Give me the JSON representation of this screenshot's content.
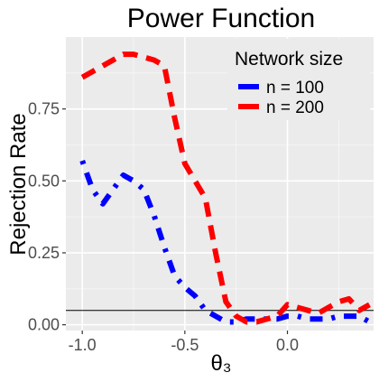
{
  "chart_data": {
    "type": "line",
    "title": "Power Function",
    "xlabel": "θ₃",
    "ylabel": "Rejection Rate",
    "xlim": [
      -1.08,
      0.42
    ],
    "ylim": [
      -0.02,
      1.0
    ],
    "x_ticks": [
      -1.0,
      -0.5,
      0.0
    ],
    "x_tick_labels": [
      "-1.0",
      "-0.5",
      "0.0"
    ],
    "y_ticks": [
      0.0,
      0.25,
      0.5,
      0.75
    ],
    "y_tick_labels": [
      "0.00",
      "0.25",
      "0.50",
      "0.75"
    ],
    "grid": true,
    "legend": {
      "title": "Network size",
      "placement": "top-right"
    },
    "reference_line": {
      "y": 0.05,
      "color": "#000000"
    },
    "series": [
      {
        "name": "n = 100",
        "color": "#0000FF",
        "x": [
          -1.0,
          -0.95,
          -0.9,
          -0.85,
          -0.8,
          -0.75,
          -0.7,
          -0.65,
          -0.6,
          -0.55,
          -0.5,
          -0.45,
          -0.4,
          -0.35,
          -0.3,
          -0.25,
          -0.2,
          -0.15,
          -0.1,
          -0.05,
          0.0,
          0.05,
          0.1,
          0.15,
          0.2,
          0.25,
          0.3,
          0.35,
          0.4
        ],
        "values": [
          0.57,
          0.47,
          0.42,
          0.47,
          0.52,
          0.5,
          0.47,
          0.38,
          0.27,
          0.17,
          0.13,
          0.1,
          0.05,
          0.03,
          0.01,
          0.01,
          0.02,
          0.02,
          0.02,
          0.02,
          0.03,
          0.03,
          0.02,
          0.02,
          0.02,
          0.03,
          0.03,
          0.03,
          0.01
        ]
      },
      {
        "name": "n = 200",
        "color": "#FF0000",
        "x": [
          -1.0,
          -0.95,
          -0.9,
          -0.85,
          -0.8,
          -0.75,
          -0.7,
          -0.65,
          -0.6,
          -0.55,
          -0.5,
          -0.45,
          -0.4,
          -0.35,
          -0.3,
          -0.25,
          -0.2,
          -0.15,
          -0.1,
          -0.05,
          0.0,
          0.05,
          0.1,
          0.15,
          0.2,
          0.25,
          0.3,
          0.35,
          0.4
        ],
        "values": [
          0.86,
          0.88,
          0.9,
          0.92,
          0.94,
          0.94,
          0.93,
          0.92,
          0.9,
          0.72,
          0.56,
          0.5,
          0.44,
          0.25,
          0.08,
          0.03,
          0.01,
          0.01,
          0.02,
          0.03,
          0.07,
          0.06,
          0.05,
          0.04,
          0.06,
          0.08,
          0.09,
          0.05,
          0.07
        ]
      }
    ]
  }
}
